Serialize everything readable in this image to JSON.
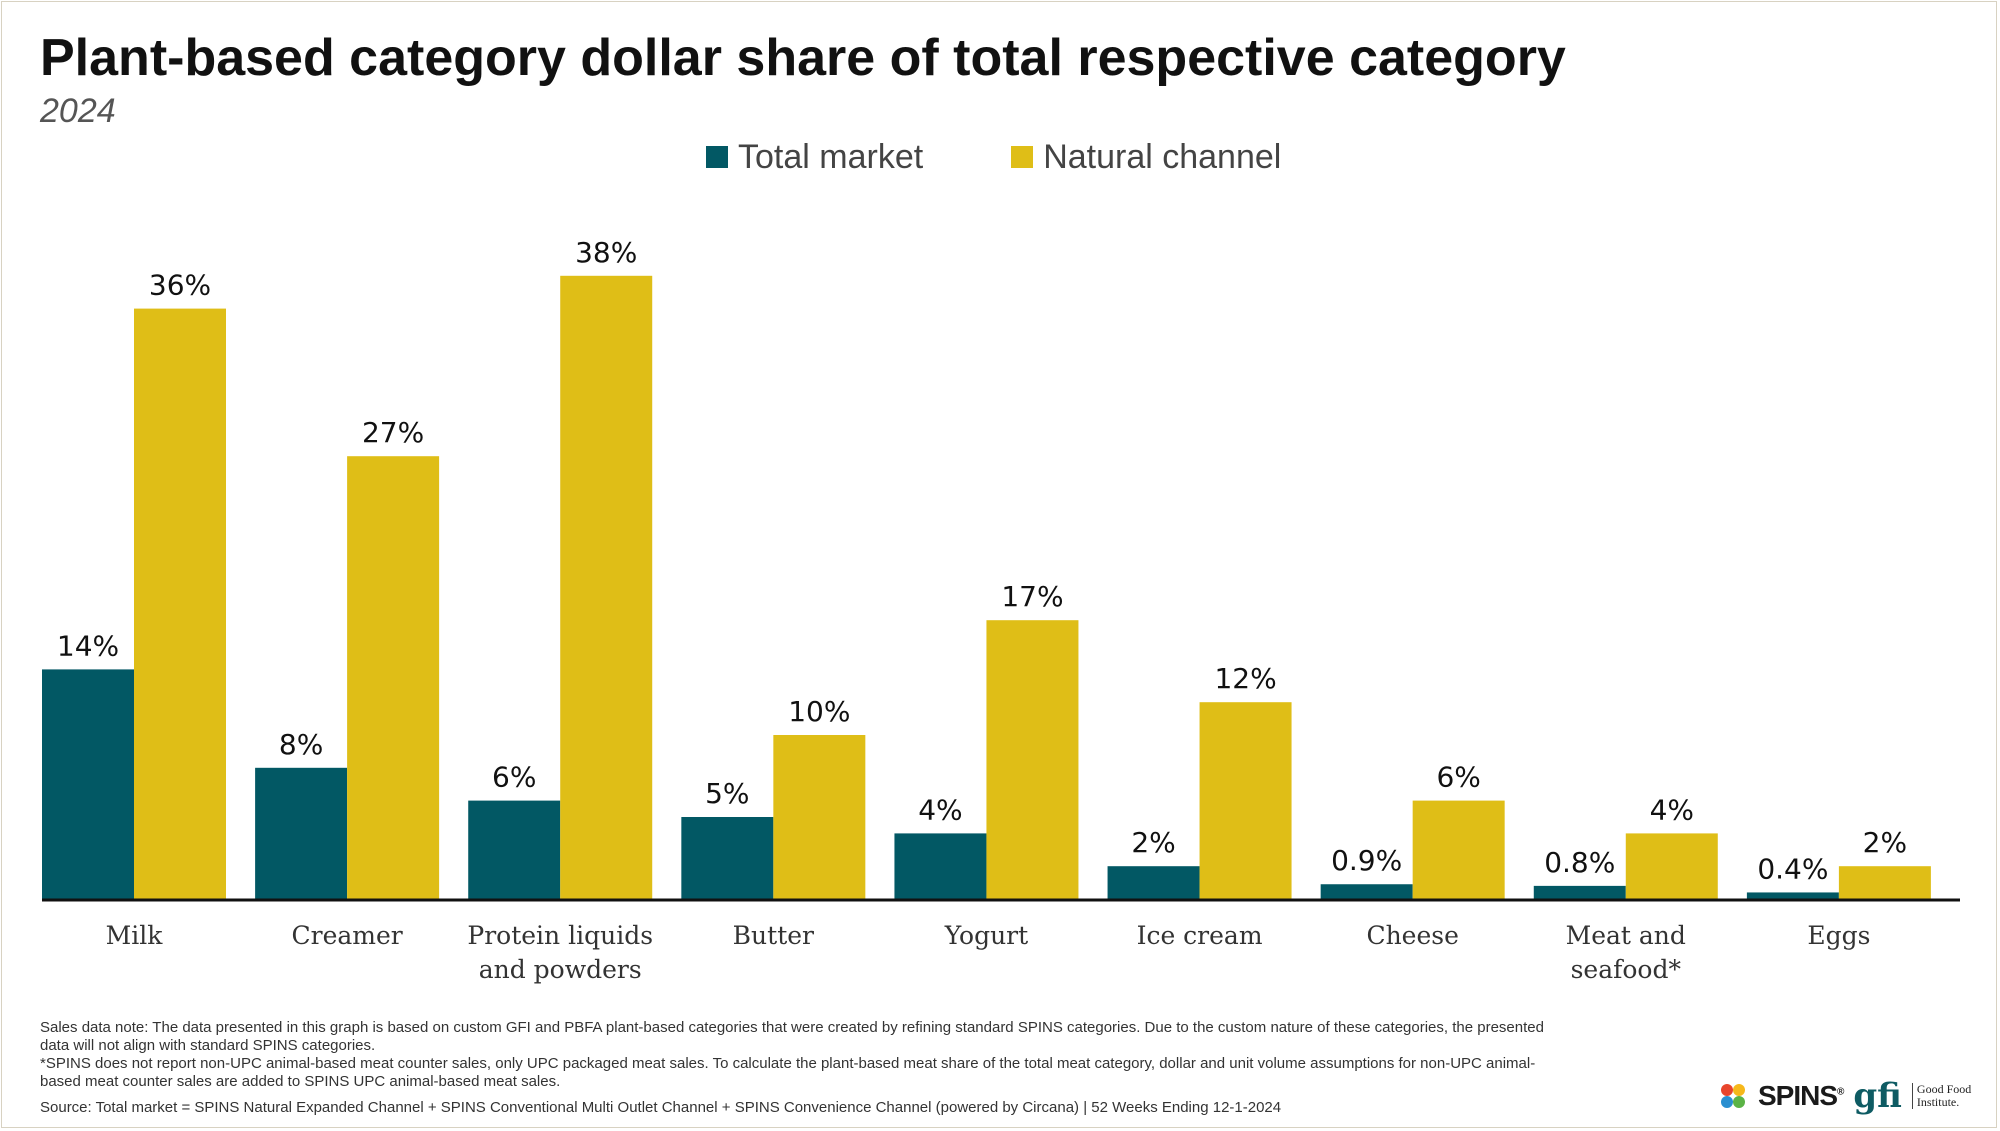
{
  "colors": {
    "total": "#025864",
    "natural": "#dfbe17",
    "axis": "#111111"
  },
  "chart_data": {
    "type": "bar",
    "title": "Plant-based category dollar share of total respective category",
    "subtitle": "2024",
    "categories": [
      "Milk",
      "Creamer",
      "Protein liquids\nand powders",
      "Butter",
      "Yogurt",
      "Ice cream",
      "Cheese",
      "Meat and\nseafood*",
      "Eggs"
    ],
    "series": [
      {
        "name": "Total market",
        "values": [
          14,
          8,
          6,
          5,
          4,
          2,
          0.9,
          0.8,
          0.4
        ],
        "labels": [
          "14%",
          "8%",
          "6%",
          "5%",
          "4%",
          "2%",
          "0.9%",
          "0.8%",
          "0.4%"
        ]
      },
      {
        "name": "Natural channel",
        "values": [
          36,
          27,
          38,
          10,
          17,
          12,
          6,
          4,
          2
        ],
        "labels": [
          "36%",
          "27%",
          "38%",
          "10%",
          "17%",
          "12%",
          "6%",
          "4%",
          "2%"
        ]
      }
    ],
    "ylim": [
      0,
      40
    ],
    "xlabel": "",
    "ylabel": "",
    "grid": false,
    "legend": "top-center"
  },
  "notes": {
    "line1": "Sales data note: The data presented in this graph is based on custom GFI and PBFA plant-based categories that were created by refining standard SPINS categories. Due to the custom nature of these categories, the presented data will not align with standard SPINS categories.",
    "line2": "*SPINS does not report non-UPC animal-based meat counter sales, only UPC packaged meat sales. To calculate the plant-based meat share of the total meat category, dollar and unit volume assumptions for non-UPC animal-based meat counter sales are added to SPINS UPC animal-based meat sales.",
    "source": "Source: Total market = SPINS Natural Expanded Channel + SPINS Conventional Multi Outlet Channel + SPINS Convenience Channel (powered by Circana) | 52 Weeks Ending 12-1-2024"
  },
  "logos": {
    "spins": "SPINS",
    "spins_reg": "®",
    "gfi": "gfi",
    "gfi_line1": "Good Food",
    "gfi_line2": "Institute."
  }
}
